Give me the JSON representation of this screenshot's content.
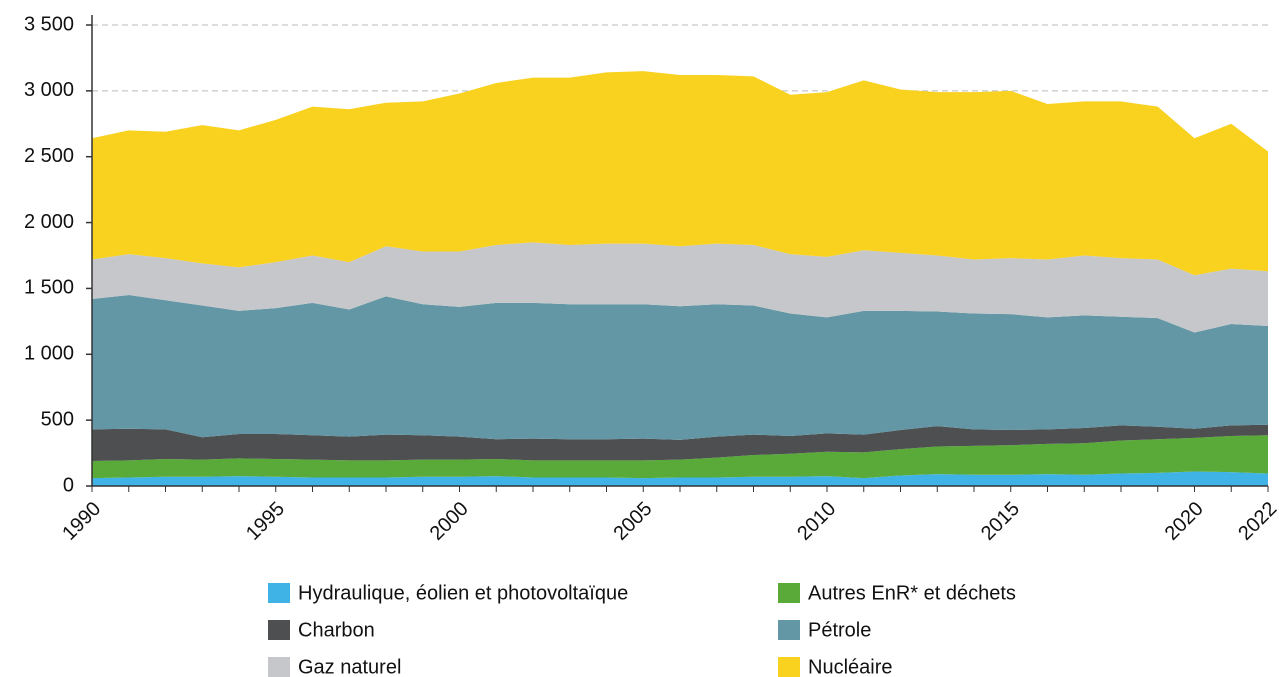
{
  "chart_data": {
    "type": "stacked-area",
    "x": [
      1990,
      1991,
      1992,
      1993,
      1994,
      1995,
      1996,
      1997,
      1998,
      1999,
      2000,
      2001,
      2002,
      2003,
      2004,
      2005,
      2006,
      2007,
      2008,
      2009,
      2010,
      2011,
      2012,
      2013,
      2014,
      2015,
      2016,
      2017,
      2018,
      2019,
      2020,
      2021,
      2022
    ],
    "xlim": [
      1990,
      2022
    ],
    "xticks": [
      1990,
      1995,
      2000,
      2005,
      2010,
      2015,
      2020,
      2022
    ],
    "ylim": [
      0,
      3500
    ],
    "yticks": [
      0,
      500,
      {
        "value": 1000,
        "label": "1 000"
      },
      {
        "value": 1500,
        "label": "1 500"
      },
      {
        "value": 2000,
        "label": "2 000"
      },
      {
        "value": 2500,
        "label": "2 500"
      },
      {
        "value": 3000,
        "label": "3 000"
      },
      {
        "value": 3500,
        "label": "3 500"
      }
    ],
    "grid": true,
    "series": [
      {
        "name": "Hydraulique, éolien et photovoltaïque",
        "color": "#3fb3e6",
        "values": [
          60,
          65,
          70,
          70,
          75,
          70,
          65,
          65,
          65,
          70,
          70,
          75,
          65,
          65,
          65,
          60,
          65,
          65,
          70,
          70,
          75,
          60,
          80,
          90,
          85,
          85,
          90,
          85,
          95,
          100,
          110,
          105,
          95
        ]
      },
      {
        "name": "Autres EnR* et déchets",
        "color": "#5aaa3a",
        "values": [
          130,
          130,
          135,
          130,
          135,
          135,
          135,
          130,
          130,
          130,
          130,
          130,
          130,
          130,
          130,
          135,
          135,
          150,
          165,
          175,
          185,
          195,
          200,
          210,
          220,
          225,
          230,
          240,
          250,
          255,
          255,
          275,
          290
        ]
      },
      {
        "name": "Charbon",
        "color": "#4d4f51",
        "values": [
          240,
          240,
          225,
          170,
          185,
          190,
          185,
          180,
          195,
          185,
          175,
          150,
          165,
          160,
          160,
          165,
          150,
          160,
          155,
          135,
          140,
          135,
          145,
          155,
          125,
          115,
          110,
          115,
          115,
          95,
          70,
          80,
          80
        ]
      },
      {
        "name": "Pétrole",
        "color": "#6397a5",
        "values": [
          990,
          1015,
          980,
          1000,
          935,
          955,
          1005,
          965,
          1050,
          995,
          985,
          1035,
          1030,
          1025,
          1025,
          1020,
          1015,
          1005,
          980,
          930,
          880,
          940,
          905,
          870,
          880,
          880,
          850,
          855,
          825,
          825,
          730,
          770,
          750
        ]
      },
      {
        "name": "Gaz naturel",
        "color": "#c6c7ca",
        "values": [
          300,
          310,
          320,
          320,
          330,
          350,
          360,
          360,
          380,
          400,
          420,
          440,
          460,
          450,
          460,
          460,
          455,
          460,
          460,
          450,
          460,
          460,
          440,
          425,
          410,
          425,
          440,
          455,
          445,
          445,
          435,
          420,
          415
        ]
      },
      {
        "name": "Nucléaire",
        "color": "#f9d11f",
        "values": [
          920,
          940,
          960,
          1050,
          1040,
          1080,
          1130,
          1160,
          1090,
          1140,
          1200,
          1230,
          1250,
          1270,
          1300,
          1310,
          1300,
          1280,
          1280,
          1210,
          1250,
          1290,
          1240,
          1240,
          1270,
          1270,
          1180,
          1170,
          1190,
          1160,
          1040,
          1100,
          910
        ]
      }
    ]
  }
}
